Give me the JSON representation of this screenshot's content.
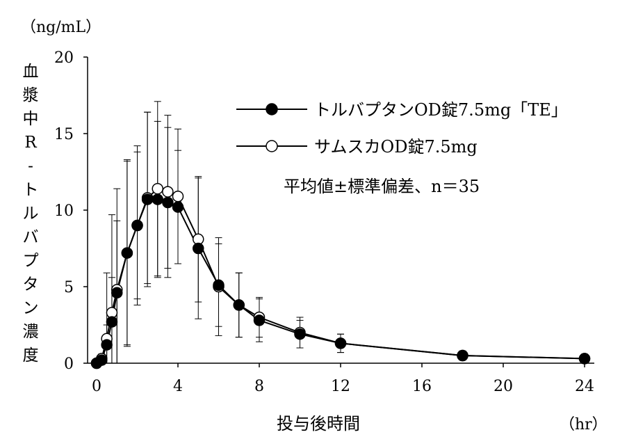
{
  "chart_data": {
    "type": "line",
    "title": "",
    "unit_label": "（ng/mL）",
    "ylabel_chars": [
      "血",
      "漿",
      "中",
      "R",
      "-",
      "ト",
      "ル",
      "バ",
      "プ",
      "タ",
      "ン",
      "濃",
      "度"
    ],
    "xlabel": "投与後時間",
    "xunit": "（hr）",
    "xlim": [
      0,
      24
    ],
    "ylim": [
      0,
      20
    ],
    "xticks": [
      0,
      4,
      8,
      12,
      16,
      20,
      24
    ],
    "yticks": [
      0,
      5,
      10,
      15,
      20
    ],
    "annotation": "平均値±標準偏差、n＝35",
    "legend": [
      {
        "label": "トルバプタンOD錠7.5mg「TE」",
        "marker": "filled"
      },
      {
        "label": "サムスカOD錠7.5mg",
        "marker": "open"
      }
    ],
    "series": [
      {
        "name": "トルバプタンOD錠7.5mg「TE」",
        "marker": "filled",
        "x": [
          0,
          0.25,
          0.5,
          0.75,
          1,
          1.5,
          2,
          2.5,
          3,
          3.5,
          4,
          5,
          6,
          7,
          8,
          10,
          12,
          18,
          24
        ],
        "y": [
          0,
          0.2,
          1.2,
          2.7,
          4.6,
          7.2,
          9.0,
          10.7,
          10.7,
          10.5,
          10.2,
          7.5,
          5.1,
          3.8,
          2.8,
          1.9,
          1.3,
          0.5,
          0.3
        ],
        "err": [
          0,
          0.2,
          1.3,
          2.9,
          4.7,
          6.0,
          5.2,
          5.7,
          5.1,
          4.9,
          3.7,
          4.6,
          2.7,
          2.1,
          1.4,
          0.9,
          0.6,
          0.3,
          0.2
        ]
      },
      {
        "name": "サムスカOD錠7.5mg",
        "marker": "open",
        "x": [
          0,
          0.25,
          0.5,
          0.75,
          1,
          1.5,
          2,
          2.5,
          3,
          3.5,
          4,
          5,
          6,
          7,
          8,
          10,
          12,
          18,
          24
        ],
        "y": [
          0,
          0.3,
          1.6,
          3.3,
          4.8,
          7.2,
          9.0,
          10.8,
          11.4,
          11.2,
          10.9,
          8.1,
          5.0,
          3.8,
          3.0,
          2.0,
          1.3,
          0.5,
          0.3
        ],
        "err": [
          0,
          0.3,
          4.3,
          6.4,
          6.6,
          6.1,
          4.8,
          5.6,
          5.7,
          5.0,
          4.4,
          4.1,
          3.2,
          2.1,
          1.3,
          1.0,
          0.6,
          0.3,
          0.2
        ]
      }
    ]
  }
}
